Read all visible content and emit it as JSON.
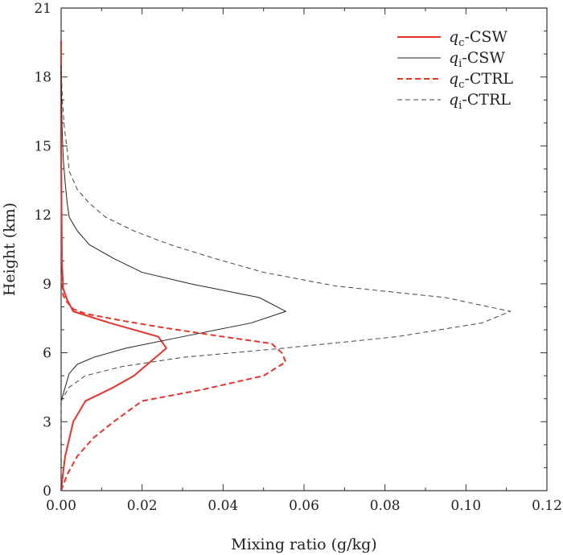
{
  "chart_data": {
    "type": "line",
    "xlabel": "Mixing ratio (g/kg)",
    "ylabel": "Height (km)",
    "xlim": [
      0,
      0.12
    ],
    "ylim": [
      0,
      21
    ],
    "xticks": [
      0,
      0.02,
      0.04,
      0.06,
      0.08,
      0.1,
      0.12
    ],
    "xtick_labels": [
      "0.00",
      "0.02",
      "0.04",
      "0.06",
      "0.08",
      "0.10",
      "0.12"
    ],
    "yticks": [
      0,
      3,
      6,
      9,
      12,
      15,
      18,
      21
    ],
    "ytick_labels": [
      "0",
      "3",
      "6",
      "9",
      "12",
      "15",
      "18",
      "21"
    ],
    "grid": false,
    "legend_position": "top-right",
    "series": [
      {
        "name": "qc-CSW",
        "var": "q",
        "sub": "c",
        "suffix": "-CSW",
        "color": "#e8332a",
        "dash": "solid",
        "weight": "thick",
        "points": [
          [
            0.0,
            0.0
          ],
          [
            0.0003,
            0.5
          ],
          [
            0.001,
            1.5
          ],
          [
            0.003,
            3.0
          ],
          [
            0.006,
            3.9
          ],
          [
            0.013,
            4.5
          ],
          [
            0.018,
            5.0
          ],
          [
            0.022,
            5.6
          ],
          [
            0.026,
            6.2
          ],
          [
            0.024,
            6.7
          ],
          [
            0.012,
            7.3
          ],
          [
            0.003,
            7.8
          ],
          [
            0.0015,
            8.3
          ],
          [
            0.0005,
            8.8
          ],
          [
            0.0002,
            10.0
          ],
          [
            0.0,
            15.0
          ],
          [
            0.0,
            19.6
          ]
        ]
      },
      {
        "name": "qi-CSW",
        "var": "q",
        "sub": "i",
        "suffix": "-CSW",
        "color": "#222222",
        "dash": "solid",
        "weight": "thin",
        "points": [
          [
            0.0,
            0.0
          ],
          [
            0.0,
            3.9
          ],
          [
            0.001,
            4.5
          ],
          [
            0.002,
            5.1
          ],
          [
            0.004,
            5.5
          ],
          [
            0.008,
            5.8
          ],
          [
            0.016,
            6.2
          ],
          [
            0.03,
            6.7
          ],
          [
            0.047,
            7.3
          ],
          [
            0.0555,
            7.8
          ],
          [
            0.049,
            8.4
          ],
          [
            0.032,
            9.0
          ],
          [
            0.02,
            9.5
          ],
          [
            0.013,
            10.1
          ],
          [
            0.007,
            10.7
          ],
          [
            0.004,
            11.3
          ],
          [
            0.002,
            11.9
          ],
          [
            0.0015,
            12.5
          ],
          [
            0.001,
            13.4
          ],
          [
            0.0005,
            14.5
          ],
          [
            0.0002,
            16.0
          ],
          [
            0.0,
            18.5
          ]
        ]
      },
      {
        "name": "qc-CTRL",
        "var": "q",
        "sub": "c",
        "suffix": "-CTRL",
        "color": "#e8332a",
        "dash": "dashed",
        "weight": "thick",
        "points": [
          [
            0.0,
            0.0
          ],
          [
            0.0015,
            0.7
          ],
          [
            0.004,
            1.5
          ],
          [
            0.008,
            2.3
          ],
          [
            0.013,
            3.0
          ],
          [
            0.02,
            3.9
          ],
          [
            0.035,
            4.4
          ],
          [
            0.05,
            5.0
          ],
          [
            0.0555,
            5.6
          ],
          [
            0.0545,
            6.0
          ],
          [
            0.052,
            6.4
          ],
          [
            0.04,
            6.7
          ],
          [
            0.025,
            7.1
          ],
          [
            0.015,
            7.4
          ],
          [
            0.006,
            7.7
          ],
          [
            0.003,
            7.9
          ],
          [
            0.0015,
            8.2
          ],
          [
            0.0005,
            8.5
          ],
          [
            0.0,
            9.5
          ]
        ]
      },
      {
        "name": "qi-CTRL",
        "var": "q",
        "sub": "i",
        "suffix": "-CTRL",
        "color": "#444444",
        "dash": "dashed",
        "weight": "thin",
        "points": [
          [
            0.0,
            0.0
          ],
          [
            0.0,
            3.9
          ],
          [
            0.002,
            4.5
          ],
          [
            0.006,
            5.0
          ],
          [
            0.015,
            5.4
          ],
          [
            0.03,
            5.8
          ],
          [
            0.055,
            6.2
          ],
          [
            0.083,
            6.7
          ],
          [
            0.104,
            7.3
          ],
          [
            0.111,
            7.8
          ],
          [
            0.095,
            8.4
          ],
          [
            0.068,
            8.9
          ],
          [
            0.05,
            9.5
          ],
          [
            0.038,
            10.1
          ],
          [
            0.027,
            10.7
          ],
          [
            0.018,
            11.3
          ],
          [
            0.011,
            11.9
          ],
          [
            0.007,
            12.5
          ],
          [
            0.004,
            13.1
          ],
          [
            0.002,
            13.9
          ],
          [
            0.0015,
            14.8
          ],
          [
            0.0008,
            15.8
          ],
          [
            0.0003,
            17.0
          ],
          [
            0.0,
            18.5
          ]
        ]
      }
    ]
  }
}
